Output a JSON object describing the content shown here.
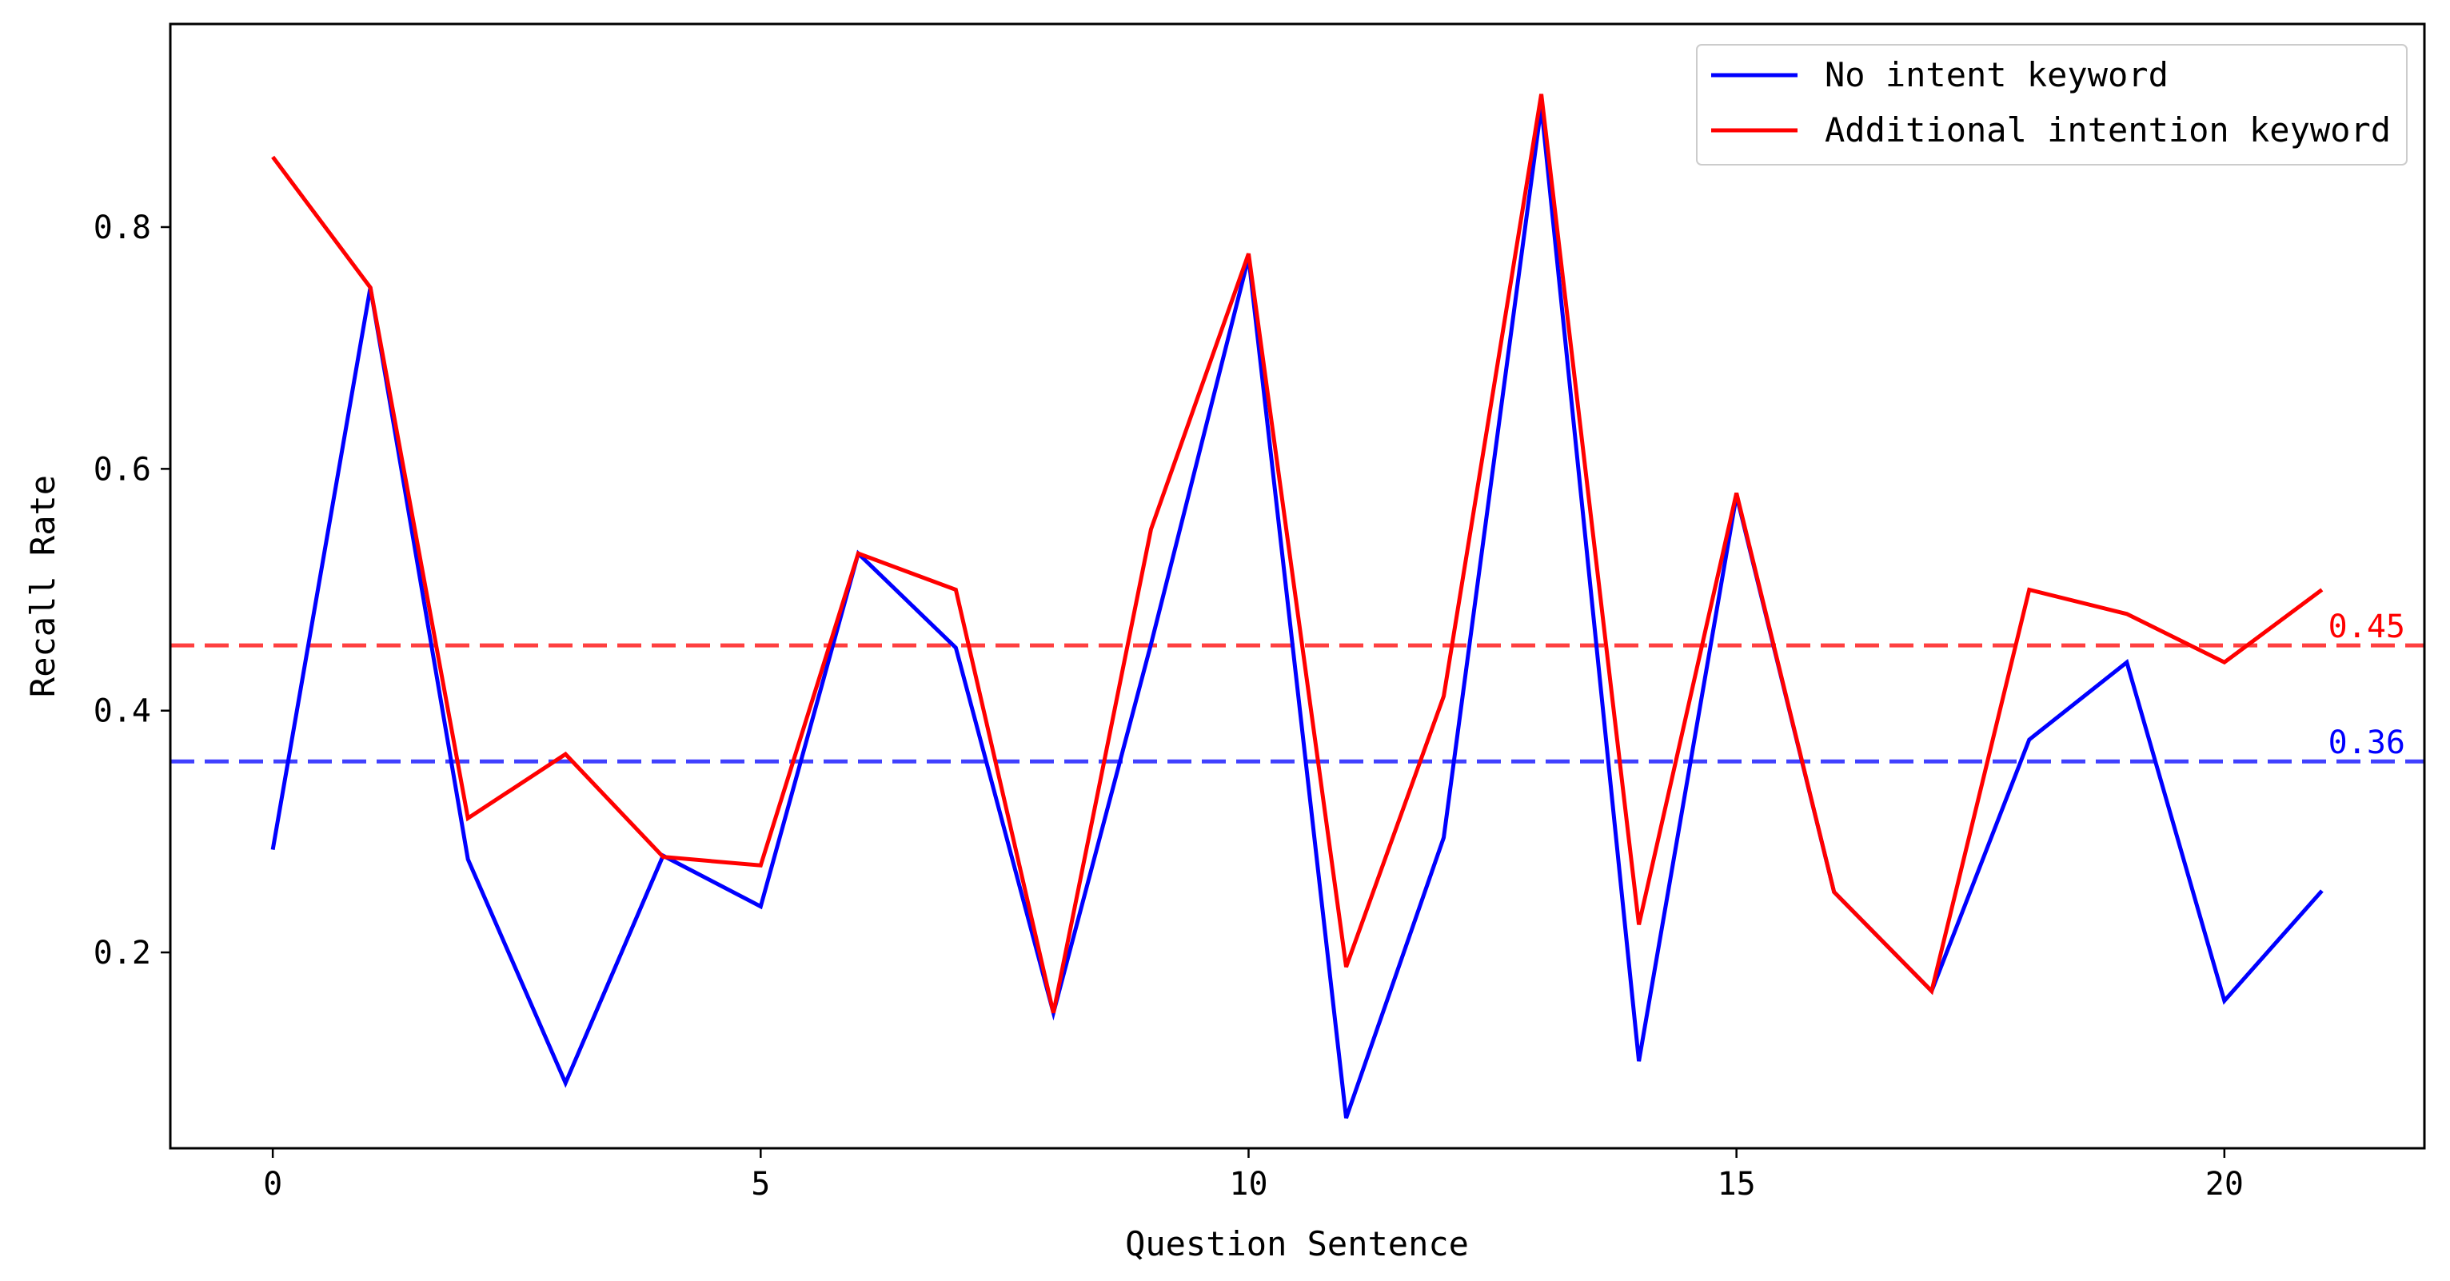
{
  "chart_data": {
    "type": "line",
    "xlabel": "Question Sentence",
    "ylabel": "Recall Rate",
    "xlim": [
      -1.05,
      22.05
    ],
    "ylim": [
      0.038,
      0.968
    ],
    "x_ticks": [
      0,
      5,
      10,
      15,
      20
    ],
    "y_ticks": [
      0.2,
      0.4,
      0.6,
      0.8
    ],
    "grid": false,
    "legend_position": "top-right",
    "x": [
      0,
      1,
      2,
      3,
      4,
      5,
      6,
      7,
      8,
      9,
      10,
      11,
      12,
      13,
      14,
      15,
      16,
      17,
      18,
      19,
      20,
      21
    ],
    "series": [
      {
        "name": "No intent keyword",
        "color": "#0000ff",
        "values": [
          0.285,
          0.75,
          0.277,
          0.092,
          0.28,
          0.238,
          0.53,
          0.452,
          0.15,
          0.455,
          0.775,
          0.063,
          0.295,
          0.9,
          0.11,
          0.578,
          0.25,
          0.168,
          0.376,
          0.44,
          0.16,
          0.251
        ]
      },
      {
        "name": "Additional intention keyword",
        "color": "#ff0000",
        "values": [
          0.858,
          0.75,
          0.311,
          0.364,
          0.279,
          0.272,
          0.53,
          0.5,
          0.15,
          0.55,
          0.778,
          0.188,
          0.412,
          0.91,
          0.223,
          0.58,
          0.25,
          0.168,
          0.5,
          0.48,
          0.44,
          0.5
        ]
      }
    ],
    "reference_lines": [
      {
        "value": 0.454,
        "label": "0.45",
        "color": "#ff0000"
      },
      {
        "value": 0.358,
        "label": "0.36",
        "color": "#0000ff"
      }
    ]
  }
}
